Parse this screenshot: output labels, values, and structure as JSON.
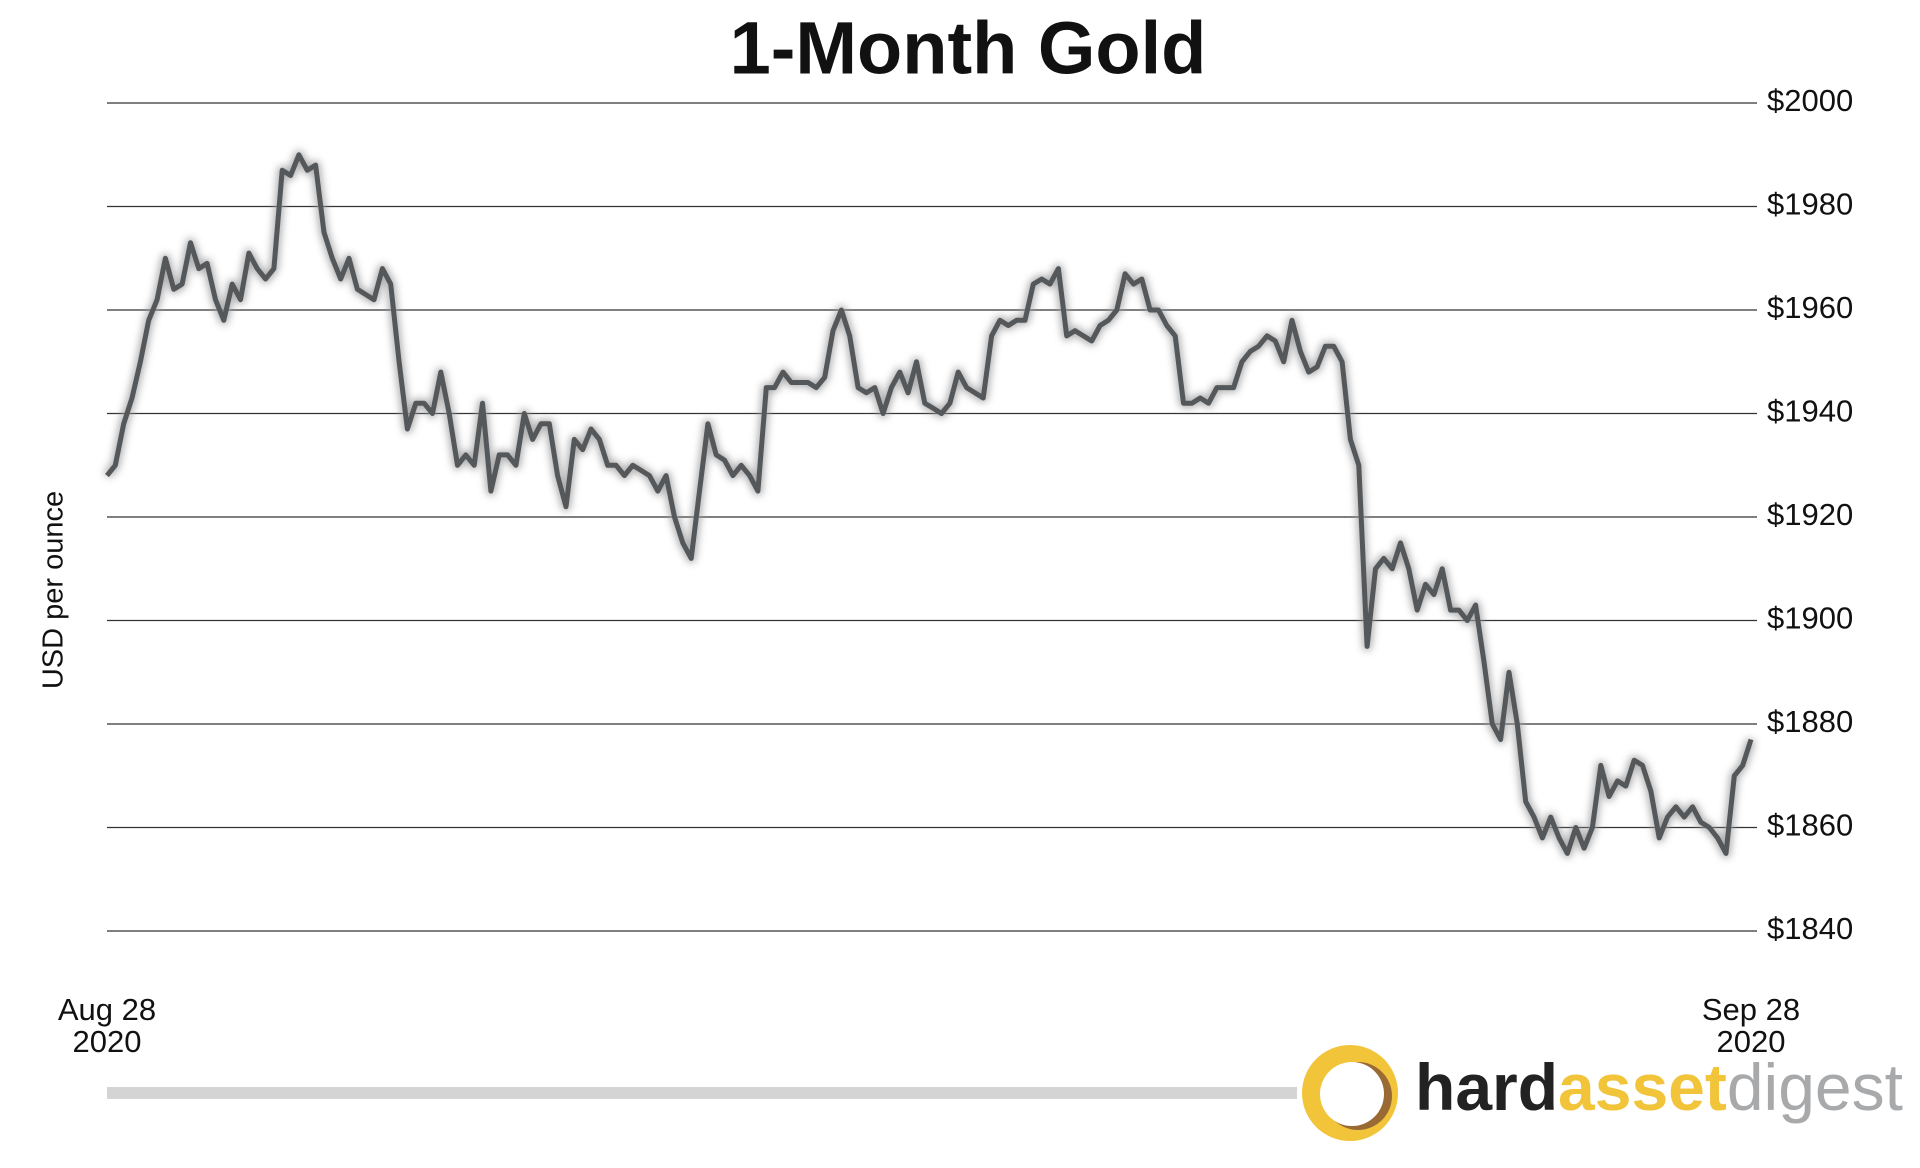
{
  "chart_data": {
    "type": "line",
    "title": "1-Month Gold",
    "y_label": "USD per ounce",
    "categories": [
      "Aug 28\n2020",
      null,
      null,
      null,
      null,
      null,
      null,
      null,
      null,
      null,
      null,
      null,
      null,
      null,
      null,
      null,
      null,
      null,
      null,
      null,
      null,
      null,
      null,
      null,
      null,
      null,
      null,
      null,
      null,
      null,
      null,
      null,
      null,
      null,
      null,
      null,
      null,
      null,
      null,
      null,
      null,
      null,
      null,
      null,
      null,
      null,
      null,
      null,
      null,
      null,
      null,
      null,
      null,
      null,
      null,
      null,
      null,
      null,
      null,
      null,
      null,
      null,
      null,
      null,
      null,
      null,
      null,
      null,
      null,
      null,
      null,
      null,
      null,
      null,
      null,
      null,
      null,
      null,
      null,
      null,
      null,
      null,
      null,
      null,
      null,
      null,
      null,
      null,
      null,
      null,
      null,
      null,
      null,
      null,
      null,
      null,
      null,
      null,
      null,
      null,
      null,
      null,
      null,
      null,
      null,
      null,
      null,
      null,
      null,
      null,
      null,
      null,
      null,
      null,
      null,
      null,
      null,
      null,
      null,
      null,
      null,
      null,
      null,
      null,
      null,
      null,
      null,
      null,
      null,
      null,
      null,
      null,
      null,
      null,
      null,
      null,
      null,
      null,
      null,
      null,
      null,
      null,
      null,
      null,
      null,
      null,
      null,
      null,
      null,
      null,
      null,
      null,
      null,
      null,
      null,
      null,
      null,
      null,
      null,
      null,
      null,
      null,
      null,
      null,
      null,
      null,
      null,
      null,
      null,
      null,
      null,
      null,
      null,
      null,
      null,
      null,
      null,
      null,
      null,
      null,
      null,
      null,
      null,
      null,
      null,
      null,
      null,
      null,
      null,
      null,
      null,
      null,
      null,
      null,
      null,
      null,
      null,
      "Sep 28\n2020"
    ],
    "values": [
      1928,
      1930,
      1938,
      1943,
      1950,
      1958,
      1962,
      1970,
      1964,
      1965,
      1973,
      1968,
      1969,
      1962,
      1958,
      1965,
      1962,
      1971,
      1968,
      1966,
      1968,
      1987,
      1986,
      1990,
      1987,
      1988,
      1975,
      1970,
      1966,
      1970,
      1964,
      1963,
      1962,
      1968,
      1965,
      1950,
      1937,
      1942,
      1942,
      1940,
      1948,
      1940,
      1930,
      1932,
      1930,
      1942,
      1925,
      1932,
      1932,
      1930,
      1940,
      1935,
      1938,
      1938,
      1928,
      1922,
      1935,
      1933,
      1937,
      1935,
      1930,
      1930,
      1928,
      1930,
      1929,
      1928,
      1925,
      1928,
      1920,
      1915,
      1912,
      1925,
      1938,
      1932,
      1931,
      1928,
      1930,
      1928,
      1925,
      1945,
      1945,
      1948,
      1946,
      1946,
      1946,
      1945,
      1947,
      1956,
      1960,
      1955,
      1945,
      1944,
      1945,
      1940,
      1945,
      1948,
      1944,
      1950,
      1942,
      1941,
      1940,
      1942,
      1948,
      1945,
      1944,
      1943,
      1955,
      1958,
      1957,
      1958,
      1958,
      1965,
      1966,
      1965,
      1968,
      1955,
      1956,
      1955,
      1954,
      1957,
      1958,
      1960,
      1967,
      1965,
      1966,
      1960,
      1960,
      1957,
      1955,
      1942,
      1942,
      1943,
      1942,
      1945,
      1945,
      1945,
      1950,
      1952,
      1953,
      1955,
      1954,
      1950,
      1958,
      1952,
      1948,
      1949,
      1953,
      1953,
      1950,
      1935,
      1930,
      1895,
      1910,
      1912,
      1910,
      1915,
      1910,
      1902,
      1907,
      1905,
      1910,
      1902,
      1902,
      1900,
      1903,
      1892,
      1880,
      1877,
      1890,
      1880,
      1865,
      1862,
      1858,
      1862,
      1858,
      1855,
      1860,
      1856,
      1860,
      1872,
      1866,
      1869,
      1868,
      1873,
      1872,
      1867,
      1858,
      1862,
      1864,
      1862,
      1864,
      1861,
      1860,
      1858,
      1855,
      1870,
      1872,
      1877
    ],
    "color": "#55585b",
    "ylim": [
      1840,
      2000
    ],
    "yticks": [
      {
        "value": 1840,
        "label": "$1840"
      },
      {
        "value": 1860,
        "label": "$1860"
      },
      {
        "value": 1880,
        "label": "$1880"
      },
      {
        "value": 1900,
        "label": "$1900"
      },
      {
        "value": 1920,
        "label": "$1920"
      },
      {
        "value": 1940,
        "label": "$1940"
      },
      {
        "value": 1960,
        "label": "$1960"
      },
      {
        "value": 1980,
        "label": "$1980"
      },
      {
        "value": 2000,
        "label": "$2000"
      }
    ],
    "y_axis_side": "right",
    "grid": true
  },
  "logo": {
    "parts": [
      "hard",
      "asset",
      "digest"
    ]
  }
}
